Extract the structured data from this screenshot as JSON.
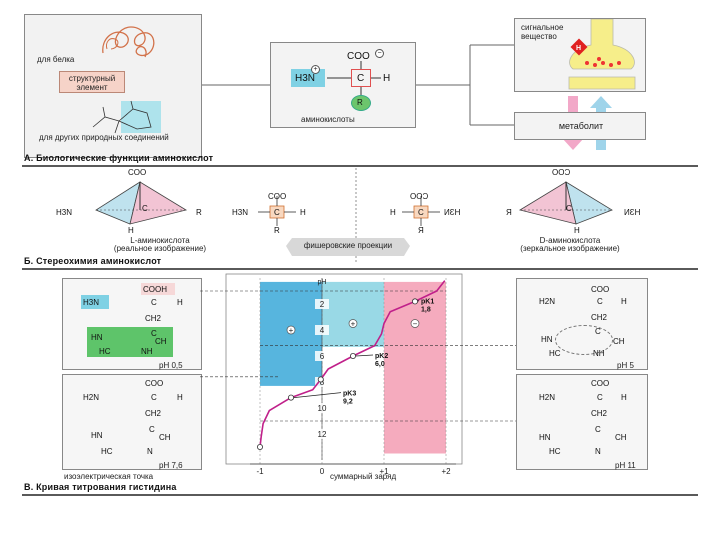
{
  "section_a": {
    "title": "А. Биологические функции аминокислот",
    "for_protein": "для белка",
    "structural_element": "структурный элемент",
    "for_other_compounds": "для других природных соединений",
    "amino_acid_label": "аминокислоты",
    "signal_substance": "сигнальное вещество",
    "metabolite": "метаболит",
    "formula": {
      "coo": "COO",
      "h3n": "H3N",
      "c": "C",
      "h": "H",
      "r": "R"
    }
  },
  "section_b": {
    "title": "Б. Стереохимия аминокислот",
    "l_amino_acid": "L-аминокислота",
    "l_note": "(реальное изображение)",
    "fischer": "фишеровские проекции",
    "d_amino_acid": "D-аминокислота",
    "d_note": "(зеркальное изображение)",
    "coo": "COO",
    "h3n": "H3N",
    "nh3_mirror": "ИƐН",
    "c": "C",
    "h": "H",
    "r": "R",
    "r_mirror": "Я",
    "coo_mirror": "OOϽ"
  },
  "section_c": {
    "title": "В. Кривая титрования гистидина",
    "isoelectric_point": "изоэлектрическая точка",
    "net_charge": "суммарный заряд",
    "ph_axis": "pH",
    "ph_ticks": [
      "2",
      "4",
      "6",
      "8",
      "10",
      "12"
    ],
    "charge_ticks": [
      "-1",
      "0",
      "+1",
      "+2"
    ],
    "pk1": {
      "label": "pK1",
      "value": "1,8"
    },
    "pk2": {
      "label": "pK2",
      "value": "6,0"
    },
    "pk3": {
      "label": "pK3",
      "value": "9,2"
    },
    "forms": {
      "ph05": "pH 0,5",
      "ph5": "pH 5",
      "ph76": "pH 7,6",
      "ph11": "pH 11",
      "cooh": "COOH",
      "coo": "COO",
      "h3n": "H3N",
      "h2n": "H2N",
      "c": "C",
      "h": "H",
      "ch2": "CH2",
      "hn": "HN",
      "ch": "CH",
      "nh": "NH",
      "hc": "HC",
      "n": "N",
      "c_ring": "C"
    },
    "zone_signs": [
      "+",
      "+",
      "−"
    ]
  },
  "chart_data": {
    "type": "line",
    "title": "В. Кривая титрования гистидина",
    "xlabel": "суммарный заряд",
    "ylabel": "pH",
    "x_ticks": [
      -1,
      0,
      1,
      2
    ],
    "y_ticks": [
      2,
      4,
      6,
      8,
      10,
      12
    ],
    "xlim": [
      -1,
      2
    ],
    "ylim": [
      14,
      0
    ],
    "series": [
      {
        "points": [
          [
            -1,
            13.0
          ],
          [
            -0.98,
            12.2
          ],
          [
            -0.95,
            11.2
          ],
          [
            -0.85,
            10.2
          ],
          [
            -0.5,
            9.2
          ],
          [
            -0.15,
            8.6
          ],
          [
            -0.02,
            7.8
          ],
          [
            0.1,
            7.0
          ],
          [
            0.5,
            6.0
          ],
          [
            0.85,
            5.2
          ],
          [
            0.96,
            4.3
          ],
          [
            1.0,
            3.5
          ],
          [
            1.1,
            2.6
          ],
          [
            1.5,
            1.8
          ],
          [
            1.85,
            1.0
          ],
          [
            1.98,
            0.2
          ]
        ]
      }
    ],
    "annotations": [
      {
        "label": "pK1 1,8",
        "x": 1.5,
        "y": 1.8
      },
      {
        "label": "pK2 6,0",
        "x": 0.5,
        "y": 6.0
      },
      {
        "label": "pK3 9,2",
        "x": -0.5,
        "y": 9.2
      }
    ]
  }
}
